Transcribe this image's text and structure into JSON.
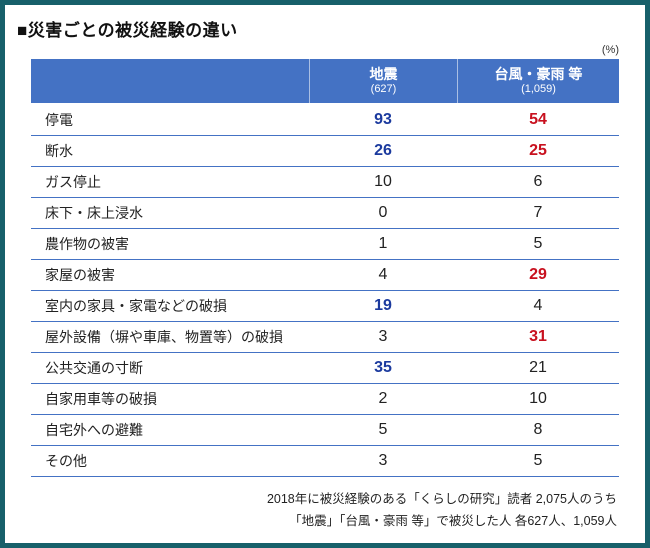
{
  "page": {
    "title": "■災害ごとの被災経験の違い",
    "unit_label": "(%)",
    "footer_line1": "2018年に被災経験のある「くらしの研究」読者 2,075人のうち",
    "footer_line2": "「地震」「台風・豪雨 等」で被災した人 各627人、1,059人"
  },
  "colors": {
    "frame": "#17606a",
    "header_bg": "#4472c4",
    "row_border": "#4472c4",
    "value_blue": "#1b3a9e",
    "value_red": "#c8101e"
  },
  "table": {
    "columns": [
      {
        "label": "地震",
        "sub": "(627)"
      },
      {
        "label": "台風・豪雨 等",
        "sub": "(1,059)"
      }
    ],
    "rows": [
      {
        "label": "停電",
        "values": [
          93,
          54
        ],
        "styles": [
          "blue",
          "red"
        ]
      },
      {
        "label": "断水",
        "values": [
          26,
          25
        ],
        "styles": [
          "blue",
          "red"
        ]
      },
      {
        "label": "ガス停止",
        "values": [
          10,
          6
        ],
        "styles": [
          "normal",
          "normal"
        ]
      },
      {
        "label": "床下・床上浸水",
        "values": [
          0,
          7
        ],
        "styles": [
          "normal",
          "normal"
        ]
      },
      {
        "label": "農作物の被害",
        "values": [
          1,
          5
        ],
        "styles": [
          "normal",
          "normal"
        ]
      },
      {
        "label": "家屋の被害",
        "values": [
          4,
          29
        ],
        "styles": [
          "normal",
          "red"
        ]
      },
      {
        "label": "室内の家具・家電などの破損",
        "values": [
          19,
          4
        ],
        "styles": [
          "blue",
          "normal"
        ]
      },
      {
        "label": "屋外設備（塀や車庫、物置等）の破損",
        "values": [
          3,
          31
        ],
        "styles": [
          "normal",
          "red"
        ]
      },
      {
        "label": "公共交通の寸断",
        "values": [
          35,
          21
        ],
        "styles": [
          "blue",
          "normal"
        ]
      },
      {
        "label": "自家用車等の破損",
        "values": [
          2,
          10
        ],
        "styles": [
          "normal",
          "normal"
        ]
      },
      {
        "label": "自宅外への避難",
        "values": [
          5,
          8
        ],
        "styles": [
          "normal",
          "normal"
        ]
      },
      {
        "label": "その他",
        "values": [
          3,
          5
        ],
        "styles": [
          "normal",
          "normal"
        ]
      }
    ]
  },
  "chart_data": {
    "type": "table",
    "title": "災害ごとの被災経験の違い",
    "unit": "%",
    "categories": [
      "停電",
      "断水",
      "ガス停止",
      "床下・床上浸水",
      "農作物の被害",
      "家屋の被害",
      "室内の家具・家電などの破損",
      "屋外設備（塀や車庫、物置等）の破損",
      "公共交通の寸断",
      "自家用車等の破損",
      "自宅外への避難",
      "その他"
    ],
    "series": [
      {
        "name": "地震",
        "n": "627",
        "values": [
          93,
          26,
          10,
          0,
          1,
          4,
          19,
          3,
          35,
          2,
          5,
          3
        ]
      },
      {
        "name": "台風・豪雨 等",
        "n": "1,059",
        "values": [
          54,
          25,
          6,
          7,
          5,
          29,
          4,
          31,
          21,
          10,
          8,
          5
        ]
      }
    ],
    "notes": [
      "2018年に被災経験のある「くらしの研究」読者 2,075人のうち",
      "「地震」「台風・豪雨 等」で被災した人 各627人、1,059人"
    ]
  }
}
